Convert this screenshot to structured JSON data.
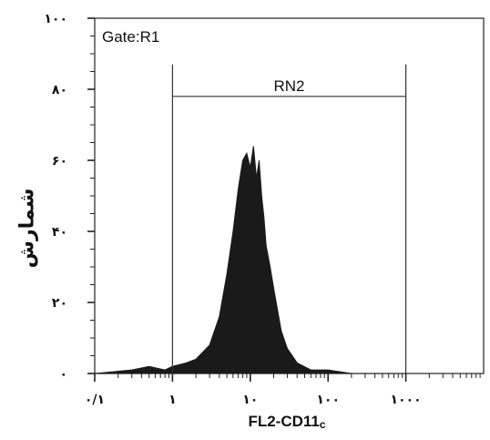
{
  "chart_data": {
    "type": "area",
    "title": "",
    "ylabel": "شمارش",
    "xlabel_main": "FL2-CD11",
    "xlabel_sub": "c",
    "x_scale": "log",
    "xlim": [
      0.1,
      10000
    ],
    "ylim": [
      0,
      100
    ],
    "gate_label": "Gate:R1",
    "region": {
      "label": "RN2",
      "x_start": 1,
      "x_end": 1000
    },
    "x_ticks": [
      {
        "value": 0.1,
        "label": "۰/۱"
      },
      {
        "value": 1,
        "label": "۱"
      },
      {
        "value": 10,
        "label": "۱۰"
      },
      {
        "value": 100,
        "label": "۱۰۰"
      },
      {
        "value": 1000,
        "label": "۱۰۰۰"
      }
    ],
    "y_ticks": [
      {
        "value": 0,
        "label": "۰"
      },
      {
        "value": 20,
        "label": "۲۰"
      },
      {
        "value": 40,
        "label": "۴۰"
      },
      {
        "value": 60,
        "label": "۶۰"
      },
      {
        "value": 80,
        "label": "۸۰"
      },
      {
        "value": 100,
        "label": "۱۰۰"
      }
    ],
    "series": [
      {
        "color": "#1a1a1a",
        "x": [
          0.1,
          0.3,
          0.5,
          0.8,
          1.0,
          1.5,
          2,
          3,
          4,
          5,
          6,
          7,
          8,
          9,
          10,
          11,
          12,
          13,
          14,
          15,
          16,
          18,
          20,
          25,
          30,
          40,
          60,
          100,
          200,
          1000
        ],
        "y": [
          0,
          1,
          2,
          1,
          2,
          3,
          4,
          8,
          16,
          28,
          40,
          52,
          60,
          62,
          58,
          64,
          55,
          60,
          50,
          44,
          36,
          30,
          24,
          12,
          7,
          3,
          1,
          1,
          0,
          0
        ]
      }
    ]
  }
}
